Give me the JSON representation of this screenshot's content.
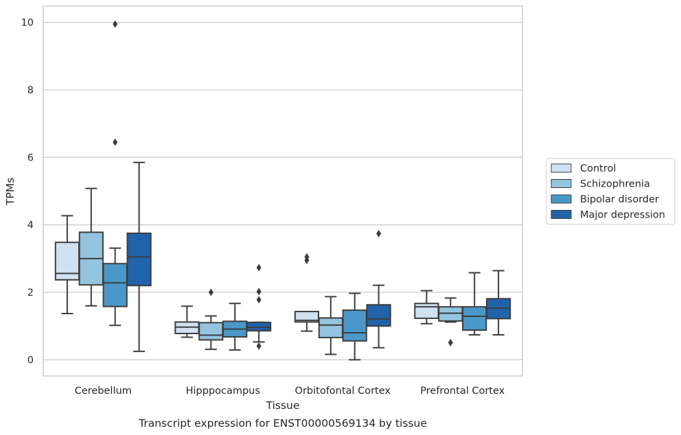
{
  "chart_data": {
    "type": "box",
    "title": "Transcript expression for ENST00000569134 by tissue",
    "xlabel": "Tissue",
    "ylabel": "TPMs",
    "ylim": [
      -0.48,
      10.48
    ],
    "yticks": [
      0,
      2,
      4,
      6,
      8,
      10
    ],
    "grid": "horizontal",
    "legend_position": "right",
    "categories": [
      "Cerebellum",
      "Hipppocampus",
      "Orbitofontal Cortex",
      "Prefrontal Cortex"
    ],
    "series": [
      {
        "name": "Control",
        "color": "#d0e1f2",
        "boxes": [
          {
            "whisker_low": 1.37,
            "q1": 2.37,
            "median": 2.56,
            "q3": 3.48,
            "whisker_high": 4.27,
            "outliers": []
          },
          {
            "whisker_low": 0.67,
            "q1": 0.78,
            "median": 0.97,
            "q3": 1.12,
            "whisker_high": 1.59,
            "outliers": []
          },
          {
            "whisker_low": 0.85,
            "q1": 1.12,
            "median": 1.17,
            "q3": 1.43,
            "whisker_high": 1.43,
            "outliers": [
              2.95,
              3.05
            ]
          },
          {
            "whisker_low": 1.07,
            "q1": 1.23,
            "median": 1.57,
            "q3": 1.67,
            "whisker_high": 2.05,
            "outliers": []
          }
        ]
      },
      {
        "name": "Schizophrenia",
        "color": "#94c4df",
        "boxes": [
          {
            "whisker_low": 1.6,
            "q1": 2.22,
            "median": 3.0,
            "q3": 3.78,
            "whisker_high": 5.08,
            "outliers": []
          },
          {
            "whisker_low": 0.31,
            "q1": 0.59,
            "median": 0.73,
            "q3": 1.1,
            "whisker_high": 1.3,
            "outliers": [
              2.0
            ]
          },
          {
            "whisker_low": 0.16,
            "q1": 0.66,
            "median": 1.03,
            "q3": 1.24,
            "whisker_high": 1.87,
            "outliers": []
          },
          {
            "whisker_low": 1.12,
            "q1": 1.15,
            "median": 1.38,
            "q3": 1.57,
            "whisker_high": 1.83,
            "outliers": [
              0.51
            ]
          }
        ]
      },
      {
        "name": "Bipolar disorder",
        "color": "#4a98c9",
        "boxes": [
          {
            "whisker_low": 1.02,
            "q1": 1.58,
            "median": 2.28,
            "q3": 2.85,
            "whisker_high": 3.31,
            "outliers": [
              6.45,
              9.95
            ]
          },
          {
            "whisker_low": 0.29,
            "q1": 0.68,
            "median": 0.91,
            "q3": 1.14,
            "whisker_high": 1.67,
            "outliers": []
          },
          {
            "whisker_low": 0.0,
            "q1": 0.56,
            "median": 0.8,
            "q3": 1.47,
            "whisker_high": 1.97,
            "outliers": []
          },
          {
            "whisker_low": 0.74,
            "q1": 0.88,
            "median": 1.29,
            "q3": 1.57,
            "whisker_high": 2.58,
            "outliers": []
          }
        ]
      },
      {
        "name": "Major depression",
        "color": "#2163aa",
        "boxes": [
          {
            "whisker_low": 0.25,
            "q1": 2.2,
            "median": 3.05,
            "q3": 3.75,
            "whisker_high": 5.85,
            "outliers": []
          },
          {
            "whisker_low": 0.53,
            "q1": 0.86,
            "median": 0.96,
            "q3": 1.11,
            "whisker_high": 1.11,
            "outliers": [
              0.41,
              1.78,
              2.02,
              2.73
            ]
          },
          {
            "whisker_low": 0.36,
            "q1": 1.0,
            "median": 1.21,
            "q3": 1.63,
            "whisker_high": 2.21,
            "outliers": [
              3.74
            ]
          },
          {
            "whisker_low": 0.74,
            "q1": 1.22,
            "median": 1.53,
            "q3": 1.81,
            "whisker_high": 2.64,
            "outliers": []
          }
        ]
      }
    ]
  }
}
